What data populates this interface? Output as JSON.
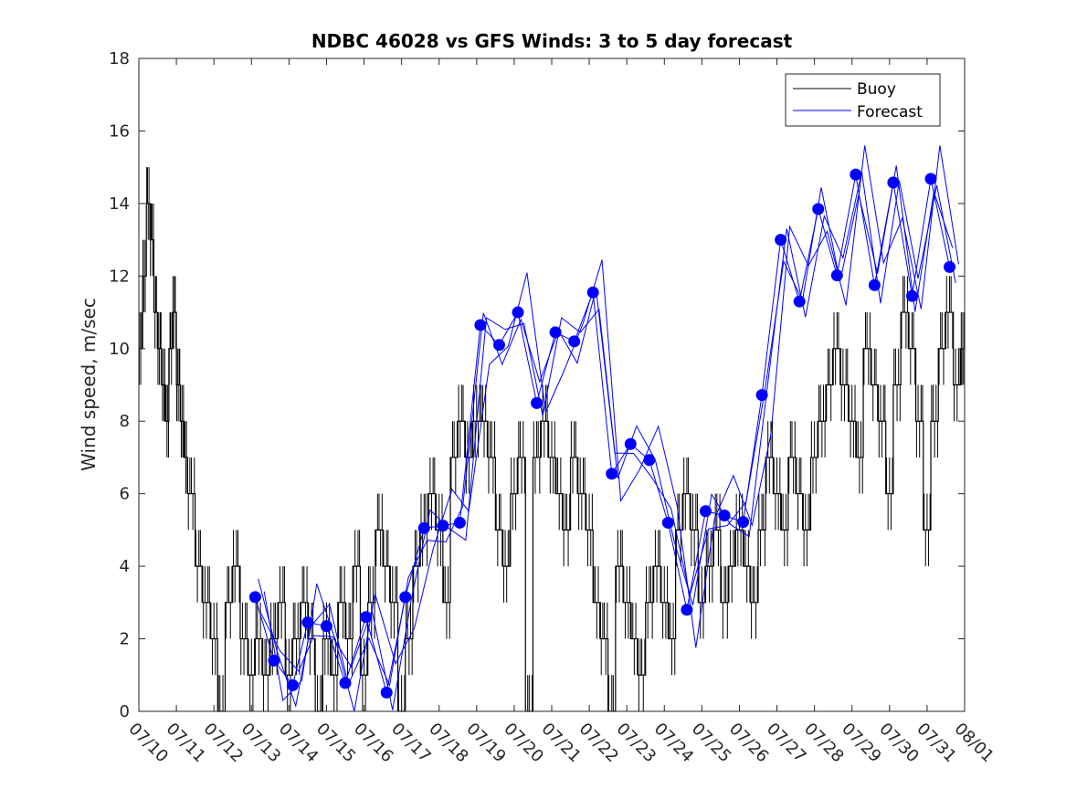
{
  "chart_data": {
    "type": "line",
    "title": "NDBC 46028 vs GFS Winds: 3 to 5 day forecast",
    "xlabel": "",
    "ylabel": "Wind speed, m/sec",
    "xlim": [
      "07/10",
      "08/01"
    ],
    "ylim": [
      0,
      18
    ],
    "yticks": [
      0,
      2,
      4,
      6,
      8,
      10,
      12,
      14,
      16,
      18
    ],
    "xticks": [
      "07/10",
      "07/11",
      "07/12",
      "07/13",
      "07/14",
      "07/15",
      "07/16",
      "07/17",
      "07/18",
      "07/19",
      "07/20",
      "07/21",
      "07/22",
      "07/23",
      "07/24",
      "07/25",
      "07/26",
      "07/27",
      "07/28",
      "07/29",
      "07/30",
      "07/31",
      "08/01"
    ],
    "legend": {
      "position": "top-right",
      "entries": [
        "Buoy",
        "Forecast"
      ]
    },
    "colors": {
      "buoy": "#000000",
      "forecast": "#0000ff"
    },
    "series": [
      {
        "name": "Buoy",
        "style": "line",
        "x_days_from_0710": [
          0.0,
          0.1,
          0.2,
          0.3,
          0.4,
          0.5,
          0.6,
          0.7,
          0.8,
          0.9,
          1.0,
          1.1,
          1.2,
          1.3,
          1.5,
          1.7,
          1.9,
          2.1,
          2.3,
          2.5,
          2.7,
          2.9,
          3.1,
          3.3,
          3.5,
          3.7,
          3.9,
          4.1,
          4.3,
          4.5,
          4.7,
          4.9,
          5.1,
          5.3,
          5.5,
          5.7,
          5.9,
          6.1,
          6.3,
          6.5,
          6.7,
          6.9,
          7.1,
          7.3,
          7.5,
          7.7,
          7.9,
          8.1,
          8.3,
          8.5,
          8.7,
          8.9,
          9.1,
          9.3,
          9.5,
          9.7,
          9.9,
          10.1,
          10.3,
          10.5,
          10.7,
          10.9,
          11.1,
          11.3,
          11.5,
          11.7,
          11.9,
          12.1,
          12.3,
          12.5,
          12.7,
          12.9,
          13.1,
          13.3,
          13.5,
          13.7,
          13.9,
          14.1,
          14.3,
          14.5,
          14.7,
          14.9,
          15.1,
          15.3,
          15.5,
          15.7,
          15.9,
          16.1,
          16.3,
          16.5,
          16.7,
          16.9,
          17.1,
          17.3,
          17.5,
          17.7,
          17.9,
          18.1,
          18.3,
          18.5,
          18.7,
          18.9,
          19.1,
          19.3,
          19.5,
          19.7,
          19.9,
          20.1,
          20.3,
          20.5,
          20.7,
          20.9,
          21.1,
          21.3,
          21.5,
          21.7,
          21.9,
          22.0
        ],
        "values": [
          10,
          12,
          14,
          13,
          11,
          10,
          9,
          8,
          10,
          11,
          9,
          8,
          7,
          6,
          4,
          3,
          2,
          0,
          3,
          4,
          2,
          1,
          2,
          1,
          2,
          3,
          1,
          2,
          3,
          2,
          0,
          2,
          1,
          3,
          2,
          4,
          1,
          3,
          5,
          4,
          3,
          0,
          2,
          4,
          5,
          6,
          5,
          3,
          7,
          8,
          7,
          8,
          8,
          7,
          5,
          4,
          6,
          7,
          0,
          7,
          8,
          7,
          6,
          5,
          7,
          6,
          5,
          3,
          2,
          0,
          4,
          3,
          2,
          1,
          3,
          4,
          3,
          2,
          5,
          6,
          5,
          3,
          4,
          5,
          3,
          4,
          5,
          4,
          3,
          5,
          7,
          6,
          5,
          7,
          6,
          5,
          7,
          8,
          9,
          10,
          9,
          8,
          7,
          10,
          9,
          8,
          6,
          9,
          11,
          10,
          8,
          5,
          8,
          10,
          11,
          9,
          10,
          11
        ]
      },
      {
        "name": "Forecast",
        "style": "markers",
        "x_days_from_0710": [
          3.1,
          3.6,
          4.1,
          4.5,
          5.0,
          5.5,
          6.05,
          6.6,
          7.1,
          7.6,
          8.1,
          8.55,
          9.1,
          9.6,
          10.1,
          10.6,
          11.1,
          11.6,
          12.1,
          12.6,
          13.1,
          13.6,
          14.1,
          14.6,
          15.1,
          15.6,
          16.1,
          16.6,
          17.1,
          17.6,
          18.1,
          18.6,
          19.1,
          19.6,
          20.1,
          20.6,
          21.1,
          21.6
        ],
        "values": [
          3.15,
          1.4,
          0.72,
          2.45,
          2.35,
          0.78,
          2.6,
          0.52,
          3.15,
          5.05,
          5.12,
          5.2,
          10.65,
          10.1,
          11.0,
          8.5,
          10.45,
          10.2,
          11.55,
          6.55,
          7.37,
          6.93,
          5.2,
          2.8,
          5.52,
          5.4,
          5.22,
          8.72,
          13.0,
          11.3,
          13.85,
          12.02,
          14.8,
          11.75,
          14.58,
          11.45,
          14.68,
          12.25
        ]
      }
    ]
  }
}
